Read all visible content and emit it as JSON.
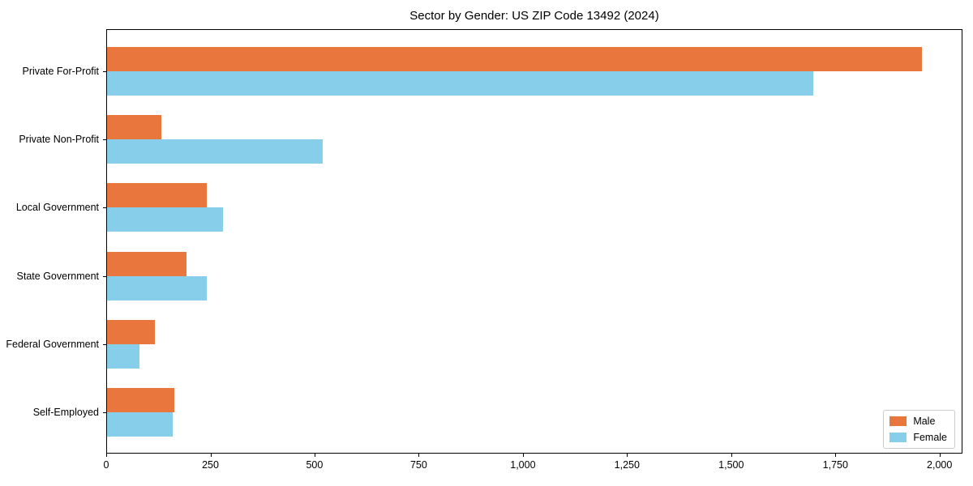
{
  "chart_data": {
    "type": "bar",
    "orientation": "horizontal",
    "title": "Sector by Gender: US ZIP Code 13492 (2024)",
    "xlabel": "",
    "ylabel": "",
    "categories": [
      "Private For-Profit",
      "Private Non-Profit",
      "Local Government",
      "State Government",
      "Federal Government",
      "Self-Employed"
    ],
    "series": [
      {
        "name": "Male",
        "color": "#e8763d",
        "values": [
          1955,
          130,
          240,
          190,
          115,
          161
        ]
      },
      {
        "name": "Female",
        "color": "#87ceeb",
        "values": [
          1695,
          518,
          279,
          239,
          77,
          158
        ]
      }
    ],
    "xlim": [
      0,
      2055
    ],
    "xticks": [
      0,
      250,
      500,
      750,
      1000,
      1250,
      1500,
      1750,
      2000
    ],
    "xtick_labels": [
      "0",
      "250",
      "500",
      "750",
      "1,000",
      "1,250",
      "1,500",
      "1,750",
      "2,000"
    ],
    "grid": false,
    "background": "#ffffff",
    "axis_color": "#000000",
    "legend": {
      "position": "lower right",
      "entries": [
        "Male",
        "Female"
      ]
    }
  }
}
